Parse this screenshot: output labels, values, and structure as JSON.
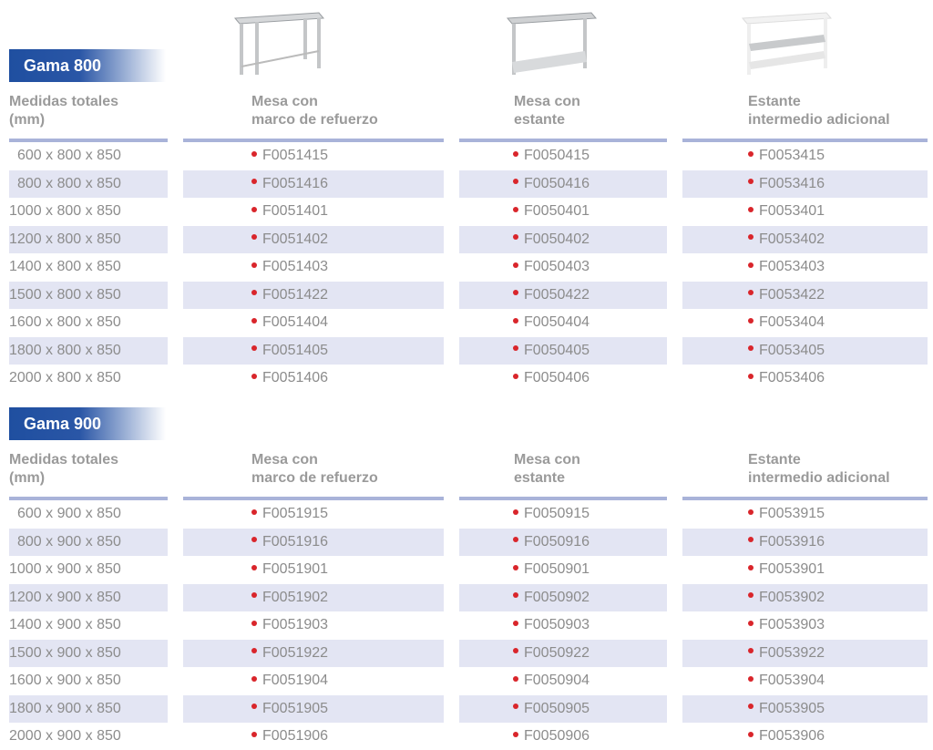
{
  "columns_header": {
    "size": "Medidas totales\n(mm)",
    "col1": "Mesa con\nmarco de refuerzo",
    "col2": "Mesa con\nestante",
    "col3": "Estante\nintermedio adicional"
  },
  "sections": [
    {
      "title": "Gama 800",
      "headers": {
        "size_line1": "Medidas totales",
        "size_line2": "(mm)",
        "c1_line1": "Mesa con",
        "c1_line2": "marco de refuerzo",
        "c2_line1": "Mesa con",
        "c2_line2": "estante",
        "c3_line1": "Estante",
        "c3_line2": "intermedio adicional"
      },
      "rows": [
        {
          "size": "600 x 800 x 850",
          "c1": "F0051415",
          "c2": "F0050415",
          "c3": "F0053415"
        },
        {
          "size": "800 x 800 x 850",
          "c1": "F0051416",
          "c2": "F0050416",
          "c3": "F0053416"
        },
        {
          "size": "1000 x 800 x 850",
          "c1": "F0051401",
          "c2": "F0050401",
          "c3": "F0053401"
        },
        {
          "size": "1200 x 800 x 850",
          "c1": "F0051402",
          "c2": "F0050402",
          "c3": "F0053402"
        },
        {
          "size": "1400 x 800 x 850",
          "c1": "F0051403",
          "c2": "F0050403",
          "c3": "F0053403"
        },
        {
          "size": "1500 x 800 x 850",
          "c1": "F0051422",
          "c2": "F0050422",
          "c3": "F0053422"
        },
        {
          "size": "1600 x 800 x 850",
          "c1": "F0051404",
          "c2": "F0050404",
          "c3": "F0053404"
        },
        {
          "size": "1800 x 800 x 850",
          "c1": "F0051405",
          "c2": "F0050405",
          "c3": "F0053405"
        },
        {
          "size": "2000 x 800 x 850",
          "c1": "F0051406",
          "c2": "F0050406",
          "c3": "F0053406"
        }
      ]
    },
    {
      "title": "Gama 900",
      "headers": {
        "size_line1": "Medidas totales",
        "size_line2": "(mm)",
        "c1_line1": "Mesa con",
        "c1_line2": "marco de refuerzo",
        "c2_line1": "Mesa con",
        "c2_line2": "estante",
        "c3_line1": "Estante",
        "c3_line2": "intermedio adicional"
      },
      "rows": [
        {
          "size": "600 x 900 x 850",
          "c1": "F0051915",
          "c2": "F0050915",
          "c3": "F0053915"
        },
        {
          "size": "800 x 900 x 850",
          "c1": "F0051916",
          "c2": "F0050916",
          "c3": "F0053916"
        },
        {
          "size": "1000 x 900 x 850",
          "c1": "F0051901",
          "c2": "F0050901",
          "c3": "F0053901"
        },
        {
          "size": "1200 x 900 x 850",
          "c1": "F0051902",
          "c2": "F0050902",
          "c3": "F0053902"
        },
        {
          "size": "1400 x 900 x 850",
          "c1": "F0051903",
          "c2": "F0050903",
          "c3": "F0053903"
        },
        {
          "size": "1500 x 900 x 850",
          "c1": "F0051922",
          "c2": "F0050922",
          "c3": "F0053922"
        },
        {
          "size": "1600 x 900 x 850",
          "c1": "F0051904",
          "c2": "F0050904",
          "c3": "F0053904"
        },
        {
          "size": "1800 x 900 x 850",
          "c1": "F0051905",
          "c2": "F0050905",
          "c3": "F0053905"
        },
        {
          "size": "2000 x 900 x 850",
          "c1": "F0051906",
          "c2": "F0050906",
          "c3": "F0053906"
        }
      ]
    }
  ],
  "colors": {
    "badge": "#1f4fa0",
    "rule": "#a9b3d9",
    "alt_row": "#e3e5f3",
    "bullet": "#d9252b"
  }
}
